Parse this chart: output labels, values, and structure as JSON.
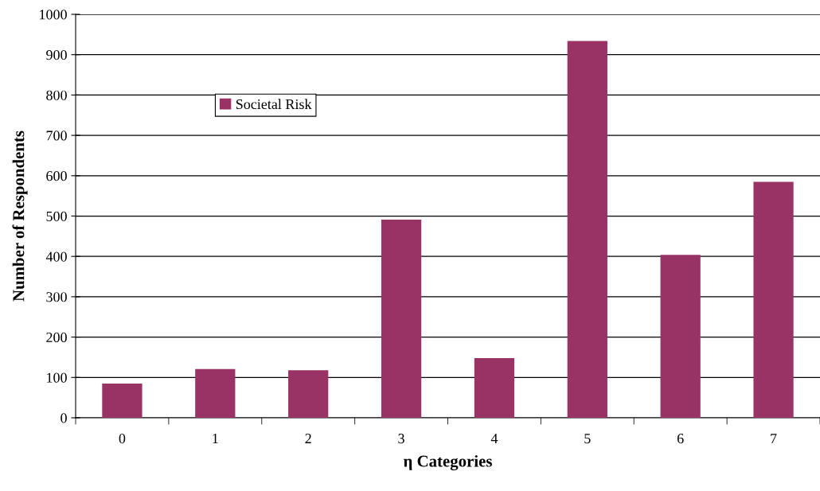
{
  "chart_data": {
    "type": "bar",
    "xlabel": "η Categories",
    "ylabel": "Number of Respondents",
    "categories": [
      "0",
      "1",
      "2",
      "3",
      "4",
      "5",
      "6",
      "7"
    ],
    "series": [
      {
        "name": "Societal Risk",
        "color": "#993366",
        "values": [
          85,
          121,
          118,
          491,
          148,
          934,
          404,
          585
        ]
      }
    ],
    "ylim": [
      0,
      1000
    ],
    "yticks": [
      0,
      100,
      200,
      300,
      400,
      500,
      600,
      700,
      800,
      900,
      1000
    ],
    "grid": "y",
    "legend": "top left"
  }
}
